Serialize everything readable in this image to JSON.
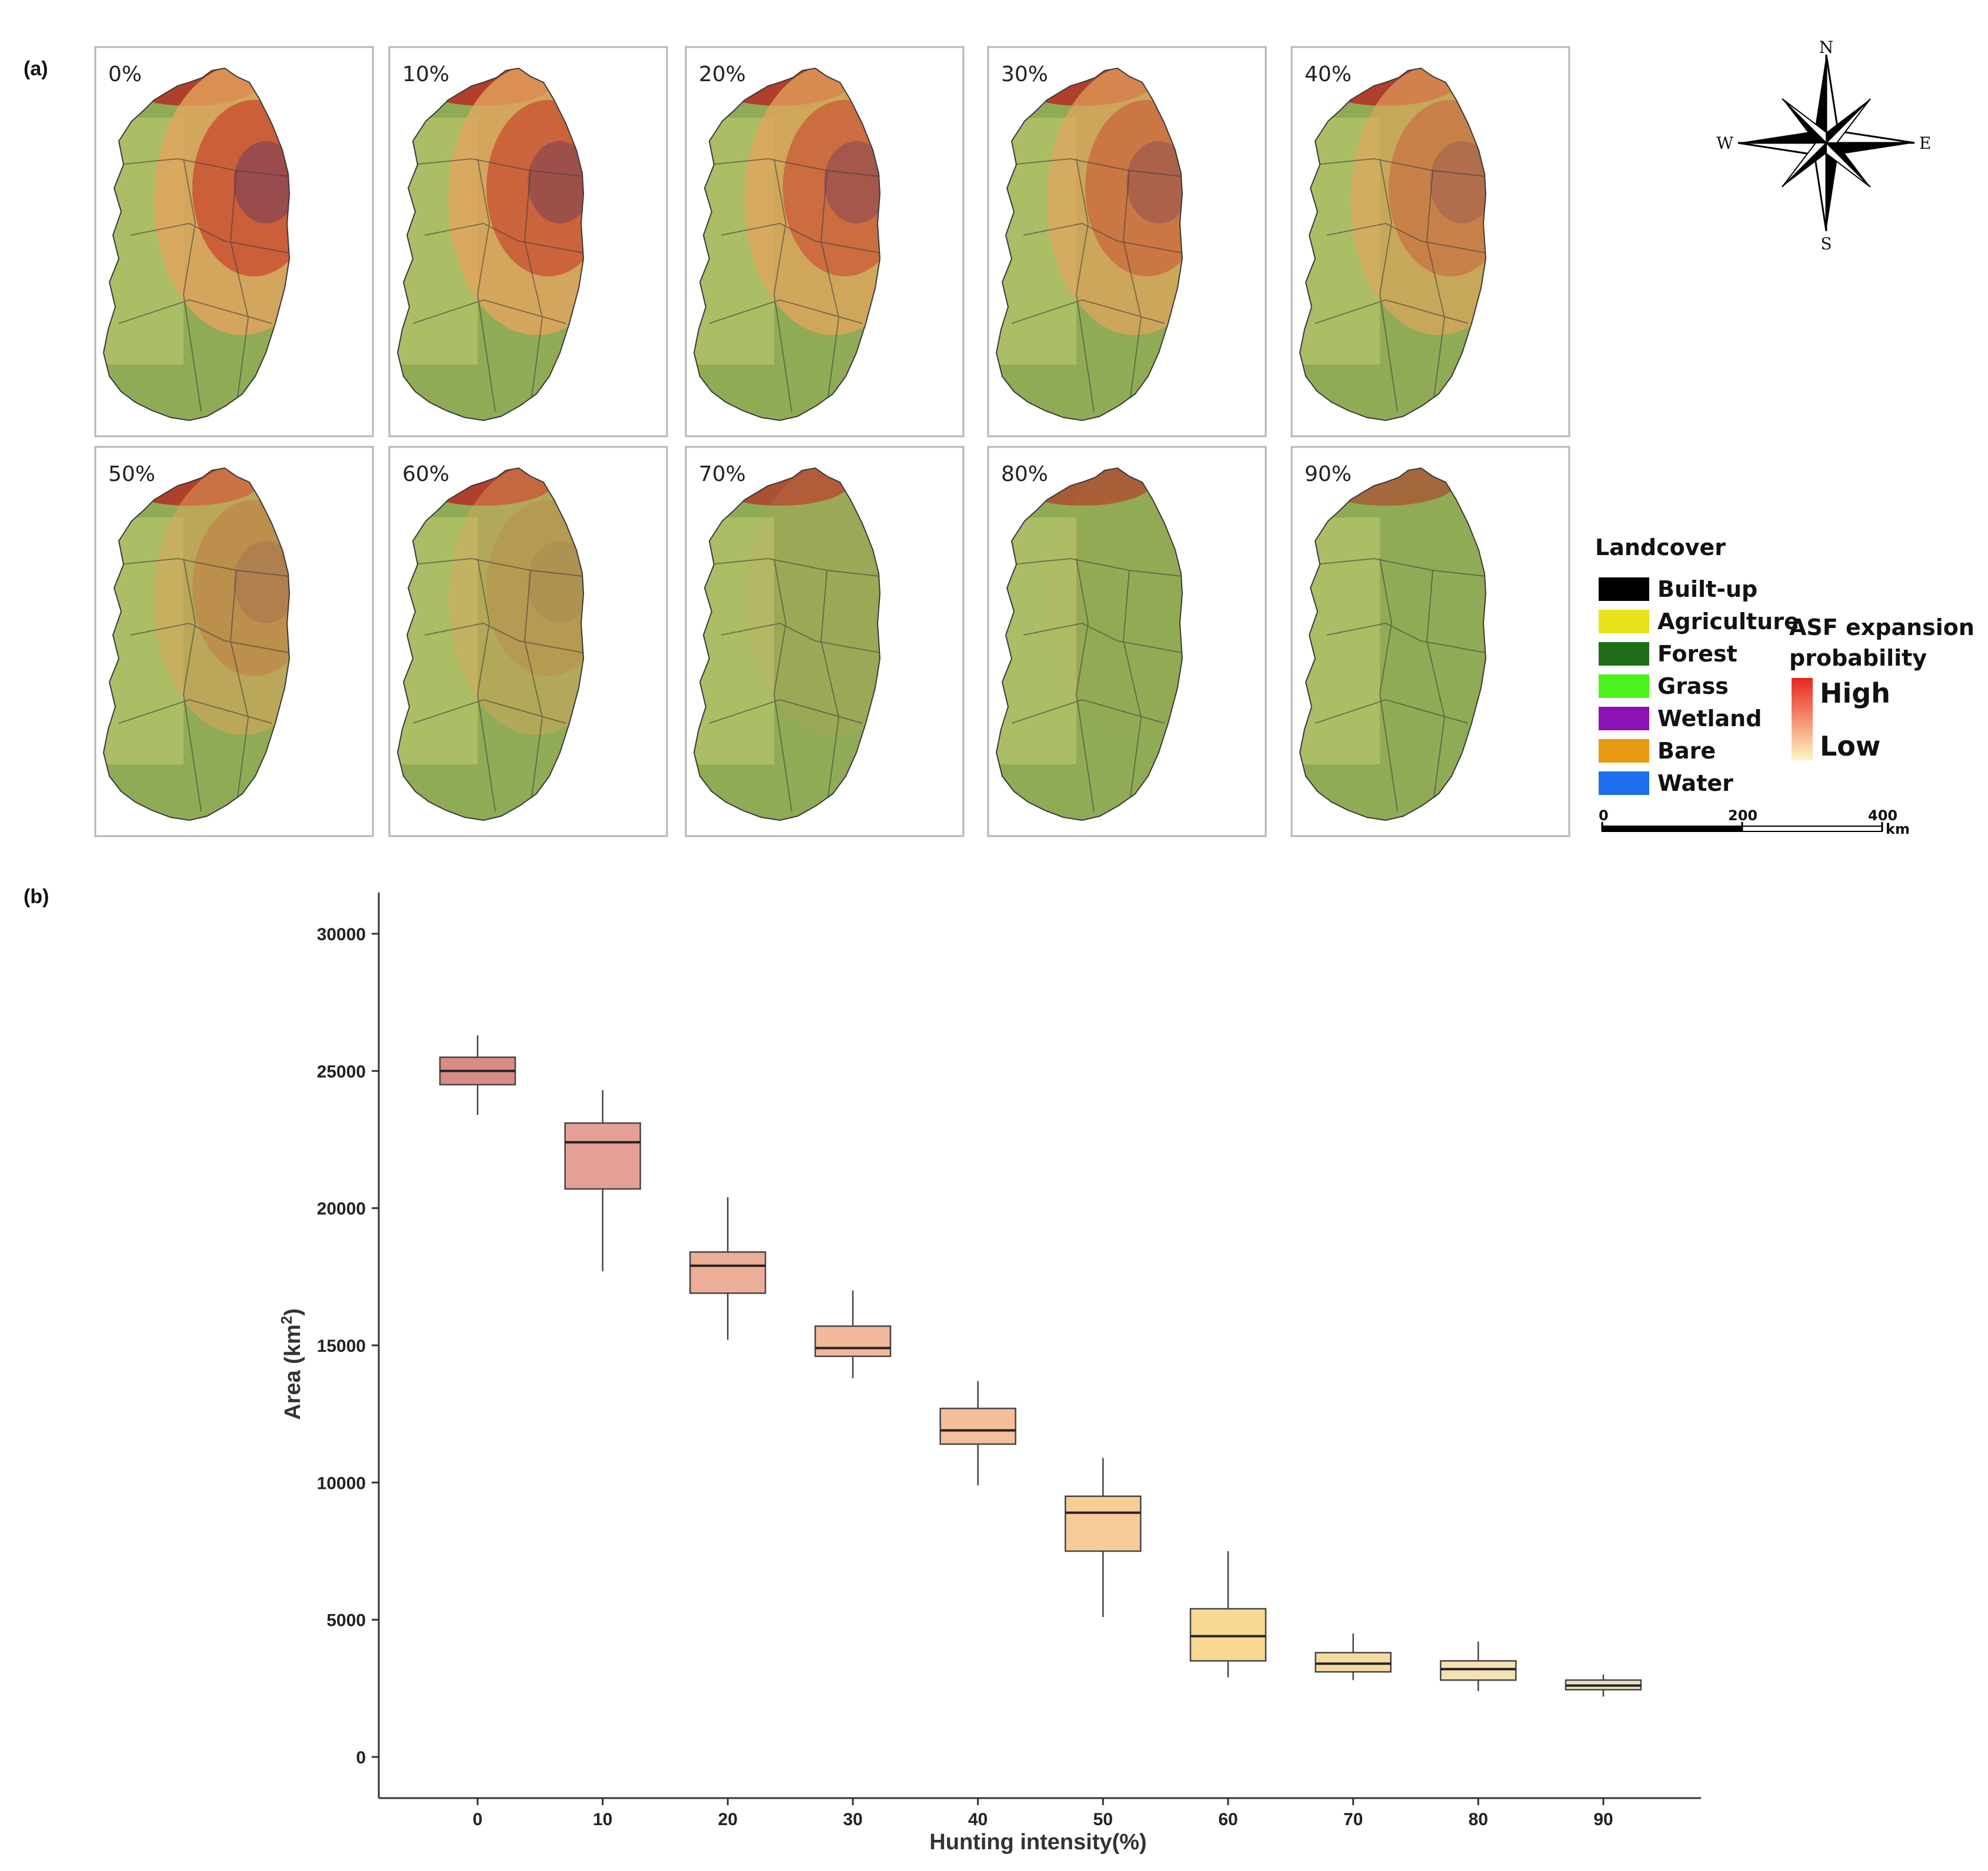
{
  "panel_a": {
    "label": "(a)",
    "maps": [
      {
        "label": "0%",
        "intensity": 0
      },
      {
        "label": "10%",
        "intensity": 10
      },
      {
        "label": "20%",
        "intensity": 20
      },
      {
        "label": "30%",
        "intensity": 30
      },
      {
        "label": "40%",
        "intensity": 40
      },
      {
        "label": "50%",
        "intensity": 50
      },
      {
        "label": "60%",
        "intensity": 60
      },
      {
        "label": "70%",
        "intensity": 70
      },
      {
        "label": "80%",
        "intensity": 80
      },
      {
        "label": "90%",
        "intensity": 90
      }
    ],
    "compass": {
      "n": "N",
      "s": "S",
      "e": "E",
      "w": "W"
    },
    "landcover": {
      "title": "Landcover",
      "items": [
        {
          "label": "Built-up",
          "color": "#000000"
        },
        {
          "label": "Agriculture",
          "color": "#e6e21c"
        },
        {
          "label": "Forest",
          "color": "#1f6e16"
        },
        {
          "label": "Grass",
          "color": "#4cf21c"
        },
        {
          "label": "Wetland",
          "color": "#8c12b5"
        },
        {
          "label": "Bare",
          "color": "#e89a12"
        },
        {
          "label": "Water",
          "color": "#1d6ff0"
        }
      ]
    },
    "probability": {
      "title_line1": "ASF expansion",
      "title_line2": "probability",
      "high": "High",
      "low": "Low",
      "color_high": "#e8261e",
      "color_low": "#fdf7c6"
    },
    "scalebar": {
      "ticks": [
        "0",
        "200",
        "400"
      ],
      "unit": "km"
    }
  },
  "panel_b": {
    "label": "(b)"
  },
  "chart_data": {
    "type": "boxplot",
    "xlabel": "Hunting intensity(%)",
    "ylabel": "Area (km²)",
    "ylabel_main": "Area (km",
    "ylabel_sup": "2",
    "ylabel_close": ")",
    "ylim": [
      -1500,
      31500
    ],
    "yticks": [
      "0",
      "5000",
      "10000",
      "15000",
      "20000",
      "25000",
      "30000"
    ],
    "categories": [
      "0",
      "10",
      "20",
      "30",
      "40",
      "50",
      "60",
      "70",
      "80",
      "90"
    ],
    "boxes": [
      {
        "x": "0",
        "whisker_low": 23400,
        "q1": 24500,
        "median": 25000,
        "q3": 25500,
        "whisker_high": 26300,
        "color": "#d98b85"
      },
      {
        "x": "10",
        "whisker_low": 17700,
        "q1": 20700,
        "median": 22400,
        "q3": 23100,
        "whisker_high": 24300,
        "color": "#e5a096"
      },
      {
        "x": "20",
        "whisker_low": 15200,
        "q1": 16900,
        "median": 17900,
        "q3": 18400,
        "whisker_high": 20400,
        "color": "#ecae98"
      },
      {
        "x": "30",
        "whisker_low": 13800,
        "q1": 14600,
        "median": 14900,
        "q3": 15700,
        "whisker_high": 17000,
        "color": "#f2b89c"
      },
      {
        "x": "40",
        "whisker_low": 9900,
        "q1": 11400,
        "median": 11900,
        "q3": 12700,
        "whisker_high": 13700,
        "color": "#f4bf9b"
      },
      {
        "x": "50",
        "whisker_low": 5100,
        "q1": 7500,
        "median": 8900,
        "q3": 9500,
        "whisker_high": 10900,
        "color": "#f8cc97"
      },
      {
        "x": "60",
        "whisker_low": 2900,
        "q1": 3500,
        "median": 4400,
        "q3": 5400,
        "whisker_high": 7500,
        "color": "#f8d892"
      },
      {
        "x": "70",
        "whisker_low": 2800,
        "q1": 3100,
        "median": 3400,
        "q3": 3800,
        "whisker_high": 4500,
        "color": "#f6dba0"
      },
      {
        "x": "80",
        "whisker_low": 2400,
        "q1": 2800,
        "median": 3200,
        "q3": 3500,
        "whisker_high": 4200,
        "color": "#f4e1b4"
      },
      {
        "x": "90",
        "whisker_low": 2200,
        "q1": 2450,
        "median": 2600,
        "q3": 2800,
        "whisker_high": 3000,
        "color": "#efe2c3"
      }
    ]
  }
}
